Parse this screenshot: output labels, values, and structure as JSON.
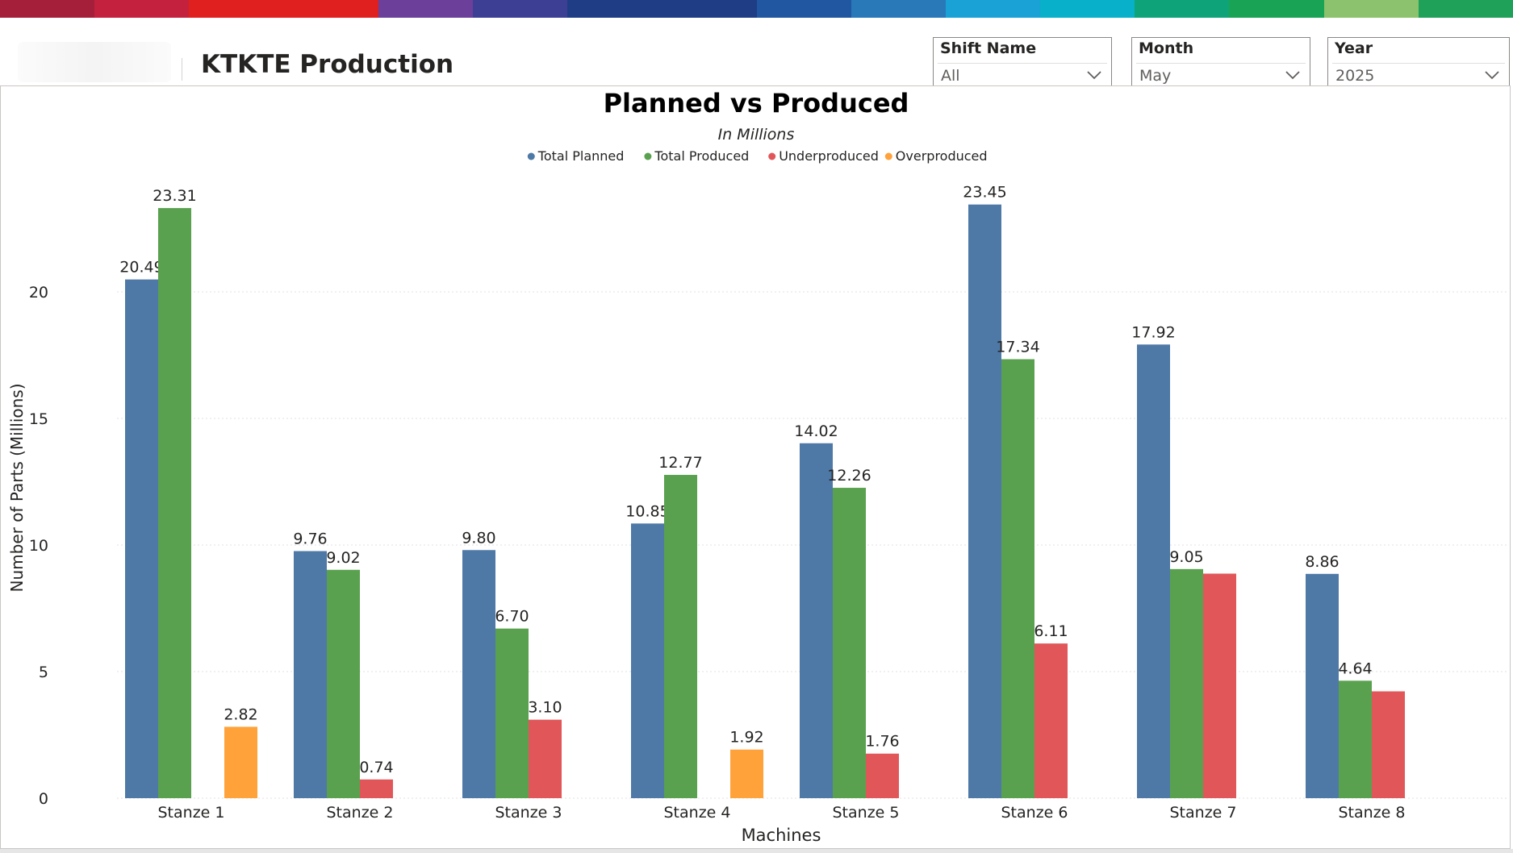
{
  "header": {
    "title": "KTKTE Production",
    "band_colors": [
      "#a51f3a",
      "#c4213e",
      "#e0201f",
      "#e0201f",
      "#6b3f9a",
      "#3d3f94",
      "#1f3d85",
      "#1f3d85",
      "#2156a0",
      "#2979b9",
      "#1aa1d6",
      "#08b0c9",
      "#0fa37a",
      "#19a455",
      "#8cc26d",
      "#20a15a"
    ]
  },
  "slicers": [
    {
      "title": "Shift Name",
      "value": "All"
    },
    {
      "title": "Month",
      "value": "May"
    },
    {
      "title": "Year",
      "value": "2025"
    }
  ],
  "chart_data": {
    "type": "bar",
    "title": "Planned vs Produced",
    "subtitle": "In Millions",
    "xlabel": "Machines",
    "ylabel": "Number of Parts (Millions)",
    "ylim": [
      0,
      25
    ],
    "yticks": [
      0,
      5,
      10,
      15,
      20
    ],
    "grid": true,
    "legend_position": "top-center",
    "categories": [
      "Stanze 1",
      "Stanze 2",
      "Stanze 3",
      "Stanze 4",
      "Stanze 5",
      "Stanze 6",
      "Stanze 7",
      "Stanze 8"
    ],
    "series": [
      {
        "name": "Total Planned",
        "color": "#4e79a7",
        "values": [
          20.49,
          9.76,
          9.8,
          10.85,
          14.02,
          23.45,
          17.92,
          8.86
        ],
        "labels": [
          "20.49",
          "9.76",
          "9.80",
          "10.85",
          "14.02",
          "23.45",
          "17.92",
          "8.86"
        ]
      },
      {
        "name": "Total Produced",
        "color": "#59a14f",
        "values": [
          23.31,
          9.02,
          6.7,
          12.77,
          12.26,
          17.34,
          9.05,
          4.64
        ],
        "labels": [
          "23.31",
          "9.02",
          "6.70",
          "12.77",
          "12.26",
          "17.34",
          "9.05",
          "4.64"
        ]
      },
      {
        "name": "Underproduced",
        "color": "#e15759",
        "values": [
          null,
          0.74,
          3.1,
          null,
          1.76,
          6.11,
          8.87,
          4.22
        ],
        "labels": [
          null,
          "0.74",
          "3.10",
          null,
          "1.76",
          "6.11",
          null,
          null
        ]
      },
      {
        "name": "Overproduced",
        "color": "#ffa23a",
        "values": [
          2.82,
          null,
          null,
          1.92,
          null,
          null,
          null,
          null
        ],
        "labels": [
          "2.82",
          null,
          null,
          "1.92",
          null,
          null,
          null,
          null
        ]
      }
    ]
  }
}
